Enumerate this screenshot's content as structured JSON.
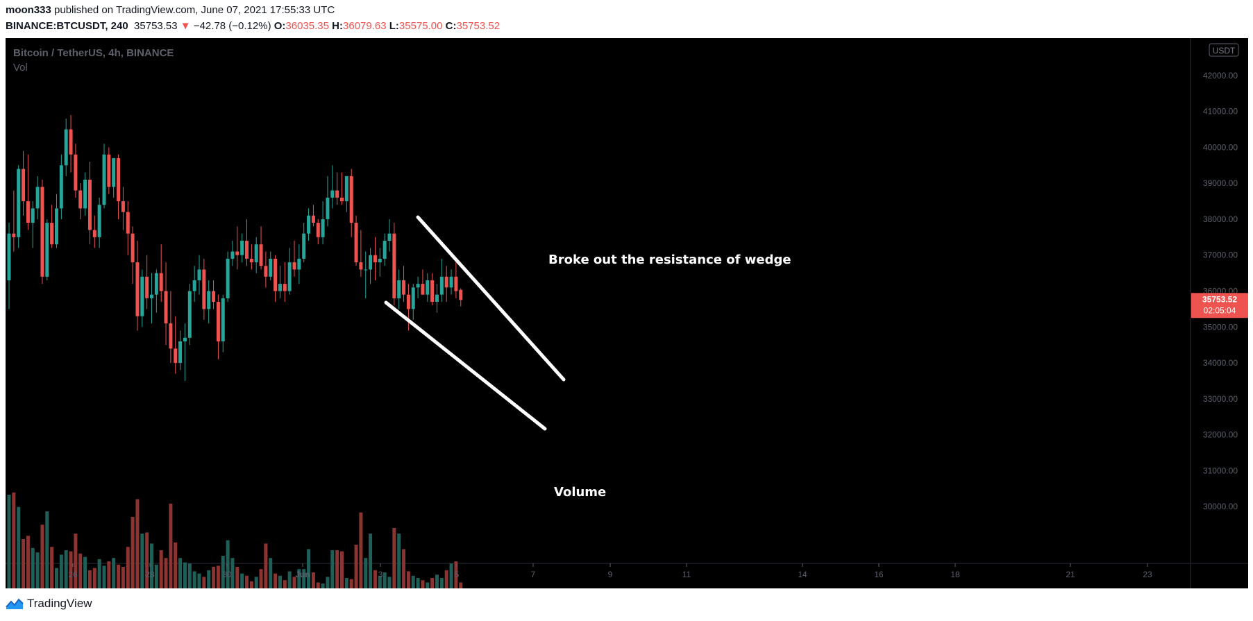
{
  "header": {
    "author": "moon333",
    "published_text": "published on TradingView.com, June 07, 2021 17:55:33 UTC",
    "symbol": "BINANCE:BTCUSDT, 240",
    "last": "35753.53",
    "change_arrow": "▼",
    "change": "−42.78 (−0.12%)",
    "o_label": "O:",
    "o": "36035.35",
    "h_label": "H:",
    "h": "36079.63",
    "l_label": "L:",
    "l": "35575.00",
    "c_label": "C:",
    "c": "35753.52"
  },
  "footer": {
    "brand": "TradingView",
    "logo_icon": "tradingview-logo-icon"
  },
  "colors": {
    "up": "#26a69a",
    "down": "#ef5350",
    "vol_up": "#1f5f58",
    "vol_down": "#8b3431",
    "bg": "#000000"
  },
  "chart_data": {
    "type": "candlestick",
    "title": "Bitcoin / TetherUS, 4h, BINANCE",
    "indicator_label": "Vol",
    "currency_badge": "USDT",
    "ylim": [
      29000,
      43000
    ],
    "price_ticks": [
      "30000.00",
      "31000.00",
      "32000.00",
      "33000.00",
      "34000.00",
      "35000.00",
      "36000.00",
      "37000.00",
      "38000.00",
      "39000.00",
      "40000.00",
      "41000.00",
      "42000.00"
    ],
    "x_ticks": [
      "26",
      "28",
      "30",
      "Jun",
      "3",
      "5",
      "7",
      "9",
      "11",
      "14",
      "16",
      "18",
      "21",
      "23"
    ],
    "last_price_label": "35753.52",
    "countdown_label": "02:05:04",
    "annotations": [
      "Broke out the resistance of wedge",
      "Volume"
    ],
    "candles": [
      {
        "o": 36300,
        "h": 37900,
        "l": 35500,
        "c": 37600,
        "v": 0.95
      },
      {
        "o": 37600,
        "h": 38800,
        "l": 37100,
        "c": 37500,
        "v": 0.97
      },
      {
        "o": 37500,
        "h": 39500,
        "l": 37200,
        "c": 39400,
        "v": 0.84
      },
      {
        "o": 39400,
        "h": 39900,
        "l": 38100,
        "c": 38500,
        "v": 0.55
      },
      {
        "o": 38500,
        "h": 39800,
        "l": 37700,
        "c": 37900,
        "v": 0.58
      },
      {
        "o": 37900,
        "h": 38500,
        "l": 37200,
        "c": 38300,
        "v": 0.47
      },
      {
        "o": 38300,
        "h": 39200,
        "l": 38000,
        "c": 38900,
        "v": 0.43
      },
      {
        "o": 38900,
        "h": 39100,
        "l": 36200,
        "c": 36400,
        "v": 0.68
      },
      {
        "o": 36400,
        "h": 38000,
        "l": 36300,
        "c": 37900,
        "v": 0.8
      },
      {
        "o": 37900,
        "h": 38400,
        "l": 37200,
        "c": 37300,
        "v": 0.48
      },
      {
        "o": 37300,
        "h": 38700,
        "l": 37200,
        "c": 38300,
        "v": 0.29
      },
      {
        "o": 38300,
        "h": 39800,
        "l": 38000,
        "c": 39500,
        "v": 0.41
      },
      {
        "o": 39500,
        "h": 40800,
        "l": 39200,
        "c": 40500,
        "v": 0.45
      },
      {
        "o": 40500,
        "h": 40900,
        "l": 39300,
        "c": 39800,
        "v": 0.44
      },
      {
        "o": 39800,
        "h": 40100,
        "l": 38600,
        "c": 38800,
        "v": 0.6
      },
      {
        "o": 38800,
        "h": 39000,
        "l": 38000,
        "c": 38300,
        "v": 0.42
      },
      {
        "o": 38300,
        "h": 39300,
        "l": 38100,
        "c": 39100,
        "v": 0.39
      },
      {
        "o": 39100,
        "h": 39600,
        "l": 37300,
        "c": 37700,
        "v": 0.27
      },
      {
        "o": 37700,
        "h": 38100,
        "l": 37200,
        "c": 37500,
        "v": 0.29
      },
      {
        "o": 37500,
        "h": 38600,
        "l": 37200,
        "c": 38400,
        "v": 0.37
      },
      {
        "o": 38400,
        "h": 40100,
        "l": 38300,
        "c": 39800,
        "v": 0.31
      },
      {
        "o": 39800,
        "h": 40000,
        "l": 38700,
        "c": 38900,
        "v": 0.35
      },
      {
        "o": 38900,
        "h": 39700,
        "l": 38600,
        "c": 39700,
        "v": 0.38
      },
      {
        "o": 39700,
        "h": 39800,
        "l": 38000,
        "c": 38500,
        "v": 0.32
      },
      {
        "o": 38500,
        "h": 38900,
        "l": 37700,
        "c": 38200,
        "v": 0.3
      },
      {
        "o": 38200,
        "h": 38500,
        "l": 37000,
        "c": 37600,
        "v": 0.48
      },
      {
        "o": 37600,
        "h": 37800,
        "l": 36200,
        "c": 36800,
        "v": 0.75
      },
      {
        "o": 36800,
        "h": 37400,
        "l": 34900,
        "c": 35300,
        "v": 0.91
      },
      {
        "o": 35300,
        "h": 36600,
        "l": 35000,
        "c": 36400,
        "v": 0.6
      },
      {
        "o": 36400,
        "h": 37000,
        "l": 35500,
        "c": 35800,
        "v": 0.61
      },
      {
        "o": 35800,
        "h": 36500,
        "l": 35100,
        "c": 35900,
        "v": 0.51
      },
      {
        "o": 35900,
        "h": 36600,
        "l": 35400,
        "c": 36500,
        "v": 0.32
      },
      {
        "o": 36500,
        "h": 37300,
        "l": 35700,
        "c": 36000,
        "v": 0.45
      },
      {
        "o": 36000,
        "h": 36800,
        "l": 34500,
        "c": 35100,
        "v": 0.38
      },
      {
        "o": 35100,
        "h": 36000,
        "l": 34000,
        "c": 34400,
        "v": 0.87
      },
      {
        "o": 34400,
        "h": 35300,
        "l": 33700,
        "c": 34000,
        "v": 0.52
      },
      {
        "o": 34000,
        "h": 34900,
        "l": 33800,
        "c": 34600,
        "v": 0.38
      },
      {
        "o": 34600,
        "h": 35100,
        "l": 33500,
        "c": 34700,
        "v": 0.34
      },
      {
        "o": 34700,
        "h": 36200,
        "l": 34500,
        "c": 36000,
        "v": 0.33
      },
      {
        "o": 36000,
        "h": 36700,
        "l": 35700,
        "c": 36300,
        "v": 0.26
      },
      {
        "o": 36300,
        "h": 37000,
        "l": 35900,
        "c": 36600,
        "v": 0.24
      },
      {
        "o": 36600,
        "h": 36900,
        "l": 35200,
        "c": 35500,
        "v": 0.21
      },
      {
        "o": 35500,
        "h": 36300,
        "l": 35100,
        "c": 36000,
        "v": 0.27
      },
      {
        "o": 36000,
        "h": 36300,
        "l": 35500,
        "c": 35700,
        "v": 0.3
      },
      {
        "o": 35700,
        "h": 35900,
        "l": 34100,
        "c": 34600,
        "v": 0.31
      },
      {
        "o": 34600,
        "h": 35900,
        "l": 34300,
        "c": 35800,
        "v": 0.4
      },
      {
        "o": 35800,
        "h": 37100,
        "l": 35700,
        "c": 36900,
        "v": 0.54
      },
      {
        "o": 36900,
        "h": 37400,
        "l": 36700,
        "c": 37100,
        "v": 0.38
      },
      {
        "o": 37100,
        "h": 37800,
        "l": 36600,
        "c": 37000,
        "v": 0.3
      },
      {
        "o": 37000,
        "h": 37600,
        "l": 36800,
        "c": 37400,
        "v": 0.24
      },
      {
        "o": 37400,
        "h": 38000,
        "l": 36700,
        "c": 36900,
        "v": 0.22
      },
      {
        "o": 36900,
        "h": 37300,
        "l": 36600,
        "c": 36800,
        "v": 0.17
      },
      {
        "o": 36800,
        "h": 37500,
        "l": 36500,
        "c": 37300,
        "v": 0.21
      },
      {
        "o": 37300,
        "h": 37800,
        "l": 36600,
        "c": 36700,
        "v": 0.28
      },
      {
        "o": 36700,
        "h": 37100,
        "l": 36100,
        "c": 36400,
        "v": 0.51
      },
      {
        "o": 36400,
        "h": 37100,
        "l": 36300,
        "c": 36900,
        "v": 0.38
      },
      {
        "o": 36900,
        "h": 37000,
        "l": 35700,
        "c": 36000,
        "v": 0.24
      },
      {
        "o": 36000,
        "h": 36700,
        "l": 35800,
        "c": 36200,
        "v": 0.22
      },
      {
        "o": 36200,
        "h": 36800,
        "l": 35700,
        "c": 36000,
        "v": 0.18
      },
      {
        "o": 36000,
        "h": 37200,
        "l": 35900,
        "c": 36800,
        "v": 0.26
      },
      {
        "o": 36800,
        "h": 37400,
        "l": 36400,
        "c": 36600,
        "v": 0.21
      },
      {
        "o": 36600,
        "h": 37300,
        "l": 36200,
        "c": 36900,
        "v": 0.28
      },
      {
        "o": 36900,
        "h": 37900,
        "l": 36800,
        "c": 37600,
        "v": 0.28
      },
      {
        "o": 37600,
        "h": 38300,
        "l": 37400,
        "c": 38100,
        "v": 0.46
      },
      {
        "o": 38100,
        "h": 38400,
        "l": 37800,
        "c": 37900,
        "v": 0.25
      },
      {
        "o": 37900,
        "h": 38000,
        "l": 37300,
        "c": 37500,
        "v": 0.16
      },
      {
        "o": 37500,
        "h": 38500,
        "l": 37300,
        "c": 38000,
        "v": 0.15
      },
      {
        "o": 38000,
        "h": 39200,
        "l": 37800,
        "c": 38600,
        "v": 0.21
      },
      {
        "o": 38600,
        "h": 39500,
        "l": 38300,
        "c": 38800,
        "v": 0.45
      },
      {
        "o": 38800,
        "h": 39300,
        "l": 38400,
        "c": 38600,
        "v": 0.45
      },
      {
        "o": 38600,
        "h": 39300,
        "l": 38400,
        "c": 38500,
        "v": 0.44
      },
      {
        "o": 38500,
        "h": 39200,
        "l": 38200,
        "c": 39200,
        "v": 0.2
      },
      {
        "o": 39200,
        "h": 39400,
        "l": 37500,
        "c": 37900,
        "v": 0.19
      },
      {
        "o": 37900,
        "h": 38100,
        "l": 36700,
        "c": 36800,
        "v": 0.5
      },
      {
        "o": 36800,
        "h": 37700,
        "l": 36400,
        "c": 36600,
        "v": 0.79
      },
      {
        "o": 36600,
        "h": 37100,
        "l": 35800,
        "c": 36600,
        "v": 0.38
      },
      {
        "o": 36600,
        "h": 37200,
        "l": 36200,
        "c": 37000,
        "v": 0.6
      },
      {
        "o": 37000,
        "h": 37500,
        "l": 36300,
        "c": 36800,
        "v": 0.27
      },
      {
        "o": 36800,
        "h": 37200,
        "l": 36400,
        "c": 36900,
        "v": 0.22
      },
      {
        "o": 36900,
        "h": 37600,
        "l": 36700,
        "c": 37400,
        "v": 0.25
      },
      {
        "o": 37400,
        "h": 38000,
        "l": 37100,
        "c": 37600,
        "v": 0.21
      },
      {
        "o": 37600,
        "h": 37900,
        "l": 35600,
        "c": 35800,
        "v": 0.65
      },
      {
        "o": 35800,
        "h": 36600,
        "l": 35500,
        "c": 36300,
        "v": 0.6
      },
      {
        "o": 36300,
        "h": 36700,
        "l": 35700,
        "c": 35900,
        "v": 0.46
      },
      {
        "o": 35900,
        "h": 36200,
        "l": 34900,
        "c": 35500,
        "v": 0.26
      },
      {
        "o": 35500,
        "h": 36200,
        "l": 35200,
        "c": 36100,
        "v": 0.22
      },
      {
        "o": 36100,
        "h": 36400,
        "l": 35800,
        "c": 36200,
        "v": 0.2
      },
      {
        "o": 36200,
        "h": 36600,
        "l": 35900,
        "c": 35900,
        "v": 0.18
      },
      {
        "o": 35900,
        "h": 36500,
        "l": 35700,
        "c": 36300,
        "v": 0.16
      },
      {
        "o": 36300,
        "h": 36500,
        "l": 35600,
        "c": 35700,
        "v": 0.2
      },
      {
        "o": 35700,
        "h": 36200,
        "l": 35400,
        "c": 35900,
        "v": 0.23
      },
      {
        "o": 35900,
        "h": 36900,
        "l": 35700,
        "c": 36400,
        "v": 0.2
      },
      {
        "o": 36400,
        "h": 36700,
        "l": 35700,
        "c": 36100,
        "v": 0.27
      },
      {
        "o": 36100,
        "h": 36600,
        "l": 35900,
        "c": 36400,
        "v": 0.33
      },
      {
        "o": 36400,
        "h": 36800,
        "l": 35800,
        "c": 36000,
        "v": 0.35
      },
      {
        "o": 36035,
        "h": 36080,
        "l": 35575,
        "c": 35753,
        "v": 0.16
      }
    ]
  }
}
